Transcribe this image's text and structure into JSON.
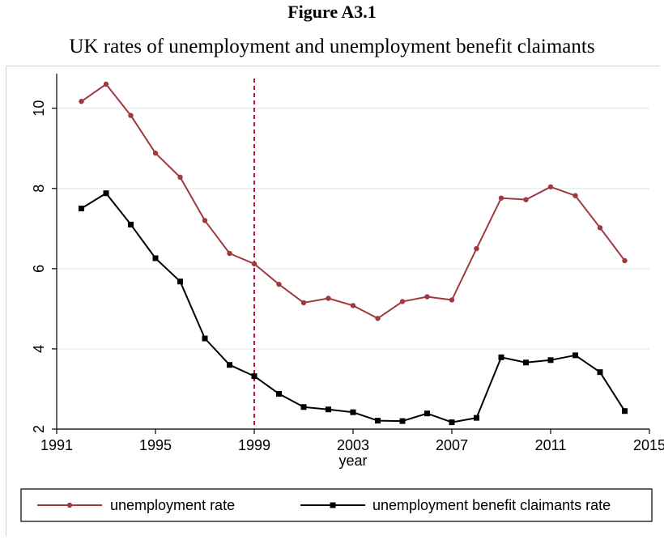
{
  "figure": {
    "title": "Figure A3.1",
    "subtitle": "UK rates of unemployment and unemployment benefit claimants"
  },
  "colors": {
    "unemployment_rate": "#a0393e",
    "claimants_rate": "#000000",
    "reference_line": "#c0102a",
    "grid": "#e4eef4"
  },
  "chart_data": {
    "type": "line",
    "title": "",
    "xlabel": "year",
    "ylabel": "",
    "xlim": [
      1991,
      2015
    ],
    "ylim": [
      2,
      10.7
    ],
    "xticks": [
      1991,
      1995,
      1999,
      2003,
      2007,
      2011,
      2015
    ],
    "yticks": [
      2,
      4,
      6,
      8,
      10
    ],
    "grid": true,
    "reference_line_x": 1999,
    "legend_position": "bottom",
    "x": [
      1992,
      1993,
      1994,
      1995,
      1996,
      1997,
      1998,
      1999,
      2000,
      2001,
      2002,
      2003,
      2004,
      2005,
      2006,
      2007,
      2008,
      2009,
      2010,
      2011,
      2012,
      2013,
      2014
    ],
    "series": [
      {
        "name": "unemployment rate",
        "marker": "circle",
        "values": [
          10.17,
          10.6,
          9.82,
          8.88,
          8.28,
          7.2,
          6.38,
          6.12,
          5.61,
          5.15,
          5.26,
          5.08,
          4.76,
          5.18,
          5.3,
          5.22,
          6.5,
          7.76,
          7.72,
          8.04,
          7.82,
          7.02,
          6.2
        ]
      },
      {
        "name": "unemployment benefit claimants rate",
        "marker": "square",
        "values": [
          7.5,
          7.88,
          7.1,
          6.26,
          5.68,
          4.26,
          3.6,
          3.32,
          2.88,
          2.55,
          2.49,
          2.42,
          2.21,
          2.2,
          2.39,
          2.17,
          2.28,
          3.79,
          3.66,
          3.72,
          3.84,
          3.42,
          2.45
        ]
      }
    ]
  }
}
